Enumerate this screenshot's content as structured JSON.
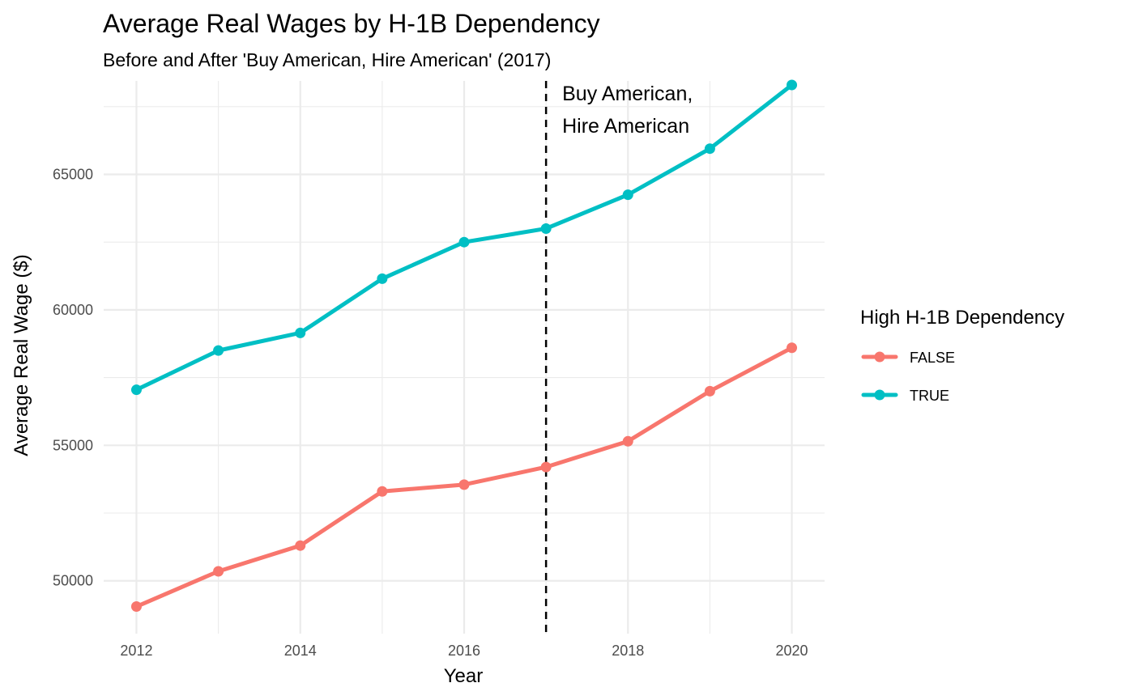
{
  "chart_data": {
    "type": "line",
    "title": "Average Real Wages by H-1B Dependency",
    "subtitle": "Before and After 'Buy American, Hire American' (2017)",
    "xlabel": "Year",
    "ylabel": "Average Real Wage ($)",
    "x": [
      2012,
      2013,
      2014,
      2015,
      2016,
      2017,
      2018,
      2019,
      2020
    ],
    "xlim": [
      2011.6,
      2020.4
    ],
    "ylim": [
      48050,
      68450
    ],
    "x_ticks": [
      2012,
      2014,
      2016,
      2018,
      2020
    ],
    "y_ticks": [
      50000,
      55000,
      60000,
      65000
    ],
    "y_minor_ticks": [
      52500,
      57500,
      62500,
      67500
    ],
    "grid": true,
    "legend": {
      "title": "High H-1B Dependency",
      "position": "right"
    },
    "series": [
      {
        "name": "FALSE",
        "color": "#F8766D",
        "values": [
          49050,
          50350,
          51300,
          53300,
          53550,
          54200,
          55150,
          57000,
          58600
        ]
      },
      {
        "name": "TRUE",
        "color": "#00BFC4",
        "values": [
          57050,
          58500,
          59150,
          61150,
          62500,
          63000,
          64250,
          65950,
          68300
        ]
      }
    ],
    "annotations": [
      {
        "type": "vline",
        "x": 2017,
        "style": "dashed",
        "color": "#000000",
        "lines": [
          "Buy American,",
          "Hire American"
        ]
      }
    ]
  }
}
